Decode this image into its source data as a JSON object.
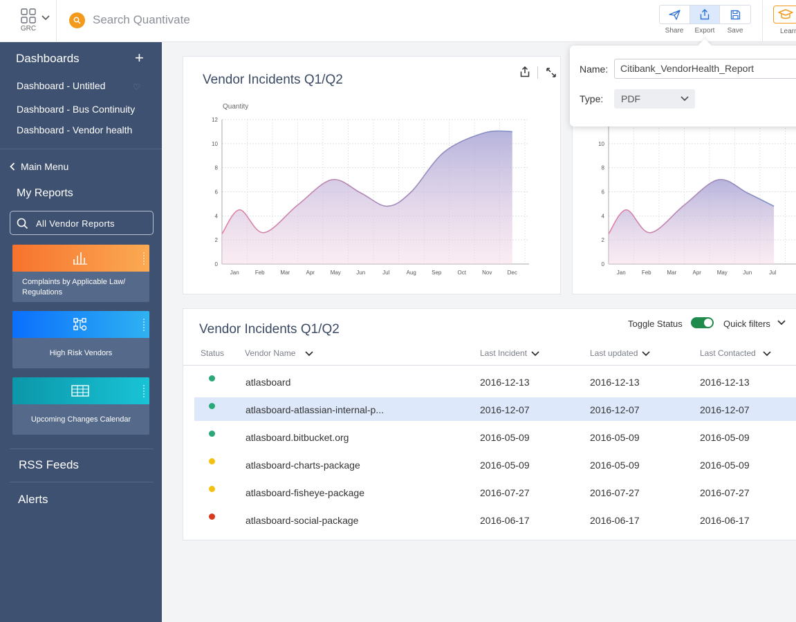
{
  "topbar": {
    "app_label": "GRC",
    "search_placeholder": "Search Quantivate",
    "actions": [
      {
        "label": "Share",
        "icon": "paper-plane-icon"
      },
      {
        "label": "Export",
        "icon": "upload-icon"
      },
      {
        "label": "Save",
        "icon": "floppy-disk-icon"
      }
    ],
    "learn_label": "Learn"
  },
  "sidebar": {
    "dashboards_header": "Dashboards",
    "dashboards": [
      "Dashboard - Untitled",
      "Dashboard - Bus Continuity",
      "Dashboard - Vendor health"
    ],
    "back_label": "Main Menu",
    "reports_header": "My Reports",
    "reports_search": "All Vendor Reports",
    "cards": [
      {
        "label": "Complaints by Applicable Law/ Regulations",
        "color_from": "#f7732d",
        "color_to": "#fbaa53"
      },
      {
        "label": "High Risk Vendors",
        "color_from": "#0b6ffc",
        "color_to": "#2fb2f2"
      },
      {
        "label": "Upcoming Changes Calendar",
        "color_from": "#0b97a9",
        "color_to": "#19c3d6"
      }
    ],
    "rss_label": "RSS Feeds",
    "alerts_label": "Alerts"
  },
  "export_popover": {
    "name_label": "Name:",
    "name_value": "Citibank_VendorHealth_Report",
    "type_label": "Type:",
    "type_value": "PDF"
  },
  "chart_data": [
    {
      "type": "area",
      "title": "Vendor Incidents Q1/Q2",
      "ylabel": "Quantity",
      "xlabel": "",
      "categories": [
        "Jan",
        "Feb",
        "Mar",
        "Apr",
        "May",
        "Jun",
        "Jul",
        "Aug",
        "Sep",
        "Oct",
        "Nov",
        "Dec"
      ],
      "x": [
        0.0,
        0.7,
        1.65,
        3.0,
        4.35,
        5.5,
        6.55,
        7.5,
        8.8,
        10.4,
        11.5
      ],
      "y": [
        2.5,
        4.5,
        2.6,
        4.9,
        7.0,
        5.9,
        4.8,
        6.0,
        9.3,
        10.9,
        11.0
      ],
      "ylim": [
        0,
        12
      ],
      "yticks": [
        0,
        2,
        4,
        6,
        8,
        10,
        12
      ],
      "grid": true,
      "line_color_from": "#e37fa3",
      "line_color_to": "#7a8fc7"
    },
    {
      "type": "area",
      "title": "",
      "categories": [
        "Jan",
        "Feb",
        "Mar",
        "Apr",
        "May",
        "Jun",
        "Jul"
      ],
      "x": [
        0.0,
        0.7,
        1.65,
        3.0,
        4.35,
        5.5,
        6.55
      ],
      "y": [
        2.5,
        4.5,
        2.6,
        4.9,
        7.0,
        5.9,
        4.8
      ],
      "ylim": [
        0,
        12
      ],
      "yticks": [
        0,
        2,
        4,
        6,
        8,
        10
      ],
      "grid": true,
      "line_color_from": "#e37fa3",
      "line_color_to": "#7a8fc7"
    }
  ],
  "table": {
    "title": "Vendor Incidents Q1/Q2",
    "toggle_label": "Toggle Status",
    "quick_filters_label": "Quick filters",
    "columns": [
      "Status",
      "Vendor Name",
      "Last Incident",
      "Last updated",
      "Last Contacted"
    ],
    "rows": [
      {
        "status_color": "#2aa876",
        "name": "atlasboard",
        "last_incident": "2016-12-13",
        "last_updated": "2016-12-13",
        "last_contacted": "2016-12-13"
      },
      {
        "status_color": "#2aa876",
        "name": "atlasboard-atlassian-internal-p...",
        "last_incident": "2016-12-07",
        "last_updated": "2016-12-07",
        "last_contacted": "2016-12-07"
      },
      {
        "status_color": "#2aa876",
        "name": "atlasboard.bitbucket.org",
        "last_incident": "2016-05-09",
        "last_updated": "2016-05-09",
        "last_contacted": "2016-05-09"
      },
      {
        "status_color": "#f4c20d",
        "name": "atlasboard-charts-package",
        "last_incident": "2016-05-09",
        "last_updated": "2016-05-09",
        "last_contacted": "2016-05-09"
      },
      {
        "status_color": "#f4c20d",
        "name": "atlasboard-fisheye-package",
        "last_incident": "2016-07-27",
        "last_updated": "2016-07-27",
        "last_contacted": "2016-07-27"
      },
      {
        "status_color": "#d6391c",
        "name": "atlasboard-social-package",
        "last_incident": "2016-06-17",
        "last_updated": "2016-06-17",
        "last_contacted": "2016-06-17"
      }
    ],
    "selected_row": 1
  }
}
